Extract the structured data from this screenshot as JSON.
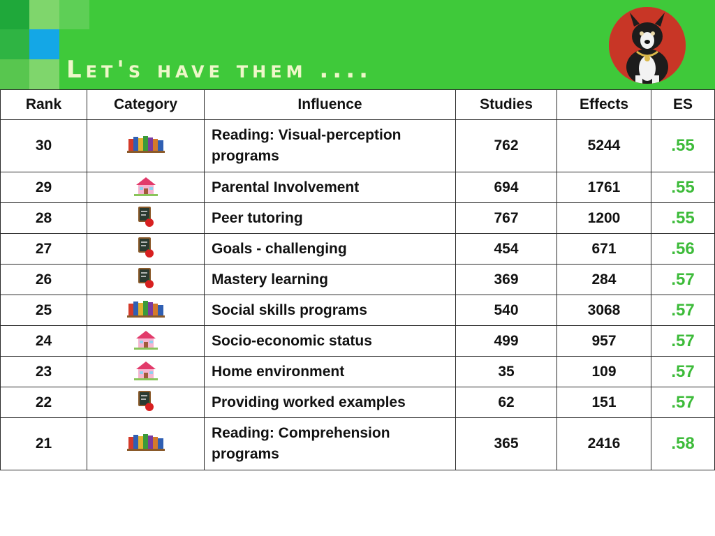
{
  "slide": {
    "title": "Let's have them ...."
  },
  "table": {
    "headers": {
      "rank": "Rank",
      "category": "Category",
      "influence": "Influence",
      "studies": "Studies",
      "effects": "Effects",
      "es": "ES"
    },
    "rows": [
      {
        "rank": "30",
        "category_icon": "books-icon",
        "influence": "Reading: Visual-perception programs",
        "studies": "762",
        "effects": "5244",
        "es": ".55"
      },
      {
        "rank": "29",
        "category_icon": "house-icon",
        "influence": "Parental Involvement",
        "studies": "694",
        "effects": "1761",
        "es": ".55"
      },
      {
        "rank": "28",
        "category_icon": "chalkboard-apple-icon",
        "influence": "Peer tutoring",
        "studies": "767",
        "effects": "1200",
        "es": ".55"
      },
      {
        "rank": "27",
        "category_icon": "chalkboard-apple-icon",
        "influence": "Goals - challenging",
        "studies": "454",
        "effects": "671",
        "es": ".56"
      },
      {
        "rank": "26",
        "category_icon": "chalkboard-apple-icon",
        "influence": "Mastery learning",
        "studies": "369",
        "effects": "284",
        "es": ".57"
      },
      {
        "rank": "25",
        "category_icon": "books-icon",
        "influence": "Social skills programs",
        "studies": "540",
        "effects": "3068",
        "es": ".57"
      },
      {
        "rank": "24",
        "category_icon": "house-icon",
        "influence": "Socio-economic status",
        "studies": "499",
        "effects": "957",
        "es": ".57"
      },
      {
        "rank": "23",
        "category_icon": "house-icon",
        "influence": "Home environment",
        "studies": "35",
        "effects": "109",
        "es": ".57"
      },
      {
        "rank": "22",
        "category_icon": "chalkboard-apple-icon",
        "influence": "Providing worked examples",
        "studies": "62",
        "effects": "151",
        "es": ".57"
      },
      {
        "rank": "21",
        "category_icon": "books-icon",
        "influence": "Reading: Comprehension programs",
        "studies": "365",
        "effects": "2416",
        "es": ".58"
      }
    ]
  },
  "colors": {
    "header_green": "#3fc93a",
    "es_green": "#3dbb3a",
    "accent_blue": "#14a7e6"
  }
}
